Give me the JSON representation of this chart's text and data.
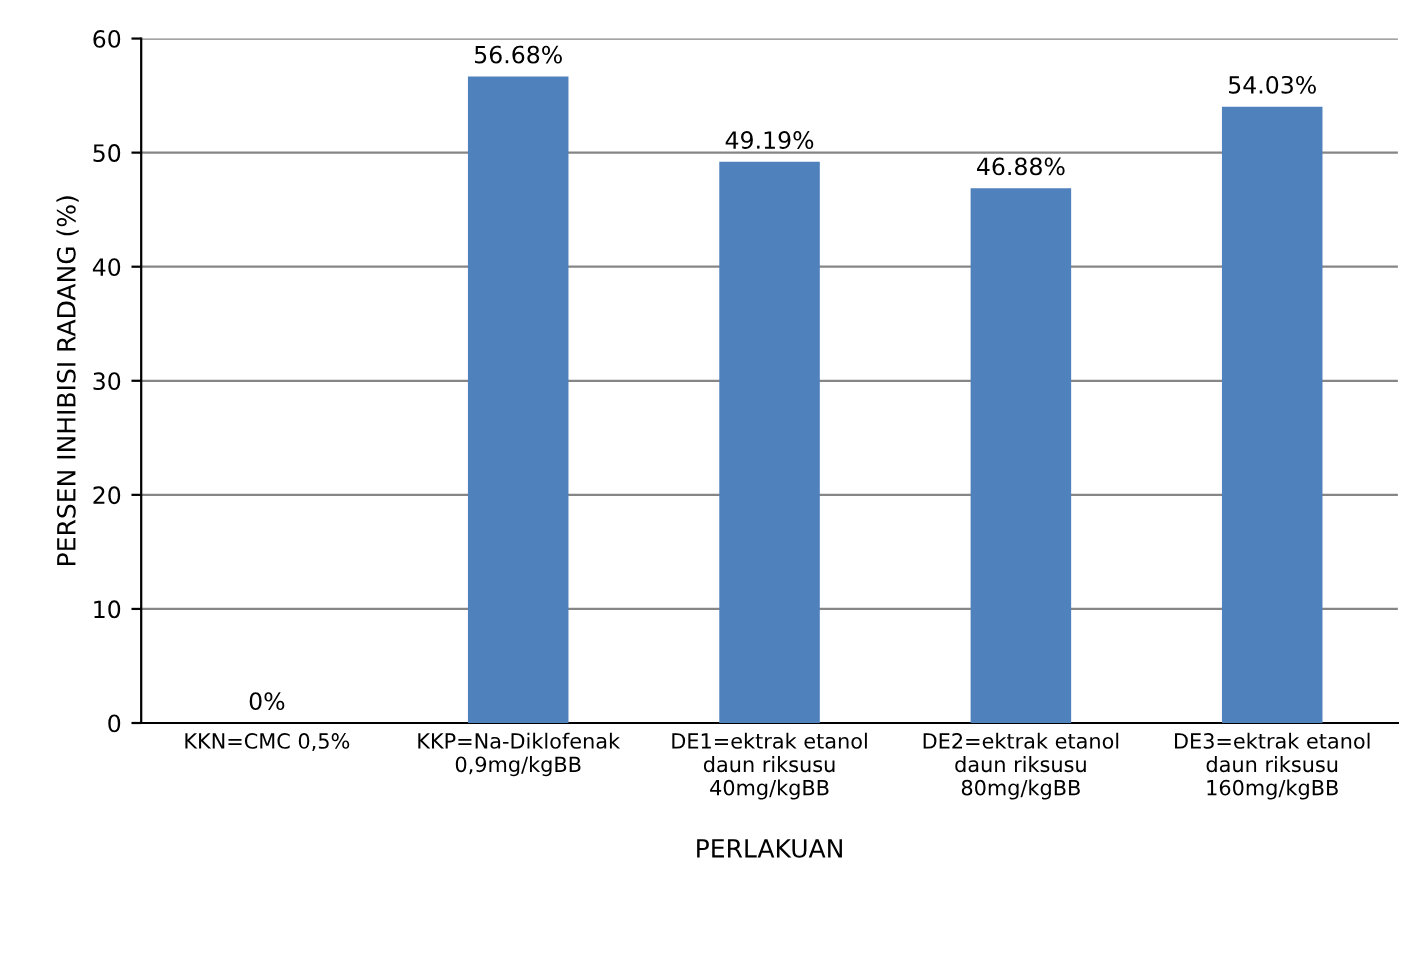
{
  "chart_data": {
    "type": "bar",
    "xlabel": "PERLAKUAN",
    "ylabel": "PERSEN INHIBISI RADANG (%)",
    "categories": [
      "KKN=CMC 0,5%",
      "KKP=Na-Diklofenak\n0,9mg/kgBB",
      "DE1=ektrak etanol\ndaun riksusu\n40mg/kgBB",
      "DE2=ektrak etanol\ndaun riksusu\n80mg/kgBB",
      "DE3=ektrak etanol\ndaun riksusu\n160mg/kgBB"
    ],
    "values": [
      0,
      56.68,
      49.19,
      46.88,
      54.03
    ],
    "value_labels": [
      "0%",
      "56.68%",
      "49.19%",
      "46.88%",
      "54.03%"
    ],
    "color": "#4f81bd",
    "ylim": [
      0,
      60
    ],
    "yticks": [
      0,
      10,
      20,
      30,
      40,
      50,
      60
    ],
    "grid": "y"
  }
}
